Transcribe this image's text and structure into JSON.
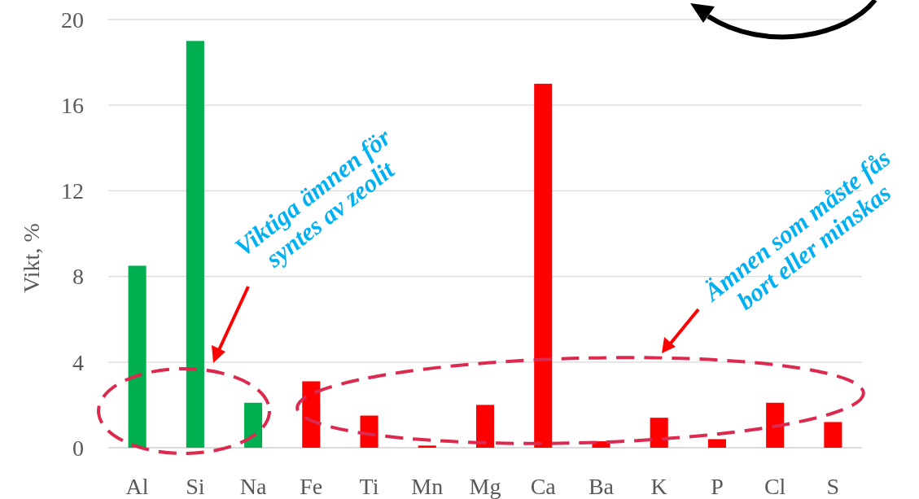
{
  "chart_data": {
    "type": "bar",
    "ylabel": "Vikt, %",
    "categories": [
      "Al",
      "Si",
      "Na",
      "Fe",
      "Ti",
      "Mn",
      "Mg",
      "Ca",
      "Ba",
      "K",
      "P",
      "Cl",
      "S"
    ],
    "values": [
      8.5,
      19.0,
      2.1,
      3.1,
      1.5,
      0.1,
      2.0,
      17.0,
      0.3,
      1.4,
      0.4,
      2.1,
      1.2
    ],
    "colors": [
      "#00b050",
      "#00b050",
      "#00b050",
      "#ff0000",
      "#ff0000",
      "#ff0000",
      "#ff0000",
      "#ff0000",
      "#ff0000",
      "#ff0000",
      "#ff0000",
      "#ff0000",
      "#ff0000"
    ],
    "ylim": [
      0,
      20
    ],
    "yticks": [
      0,
      4,
      8,
      12,
      16,
      20
    ],
    "grid": "y",
    "annotations": [
      "Viktiga ämnen för\nsyntes av zeolit",
      "Ämnen som måste fås\nbort eller minskas"
    ]
  }
}
